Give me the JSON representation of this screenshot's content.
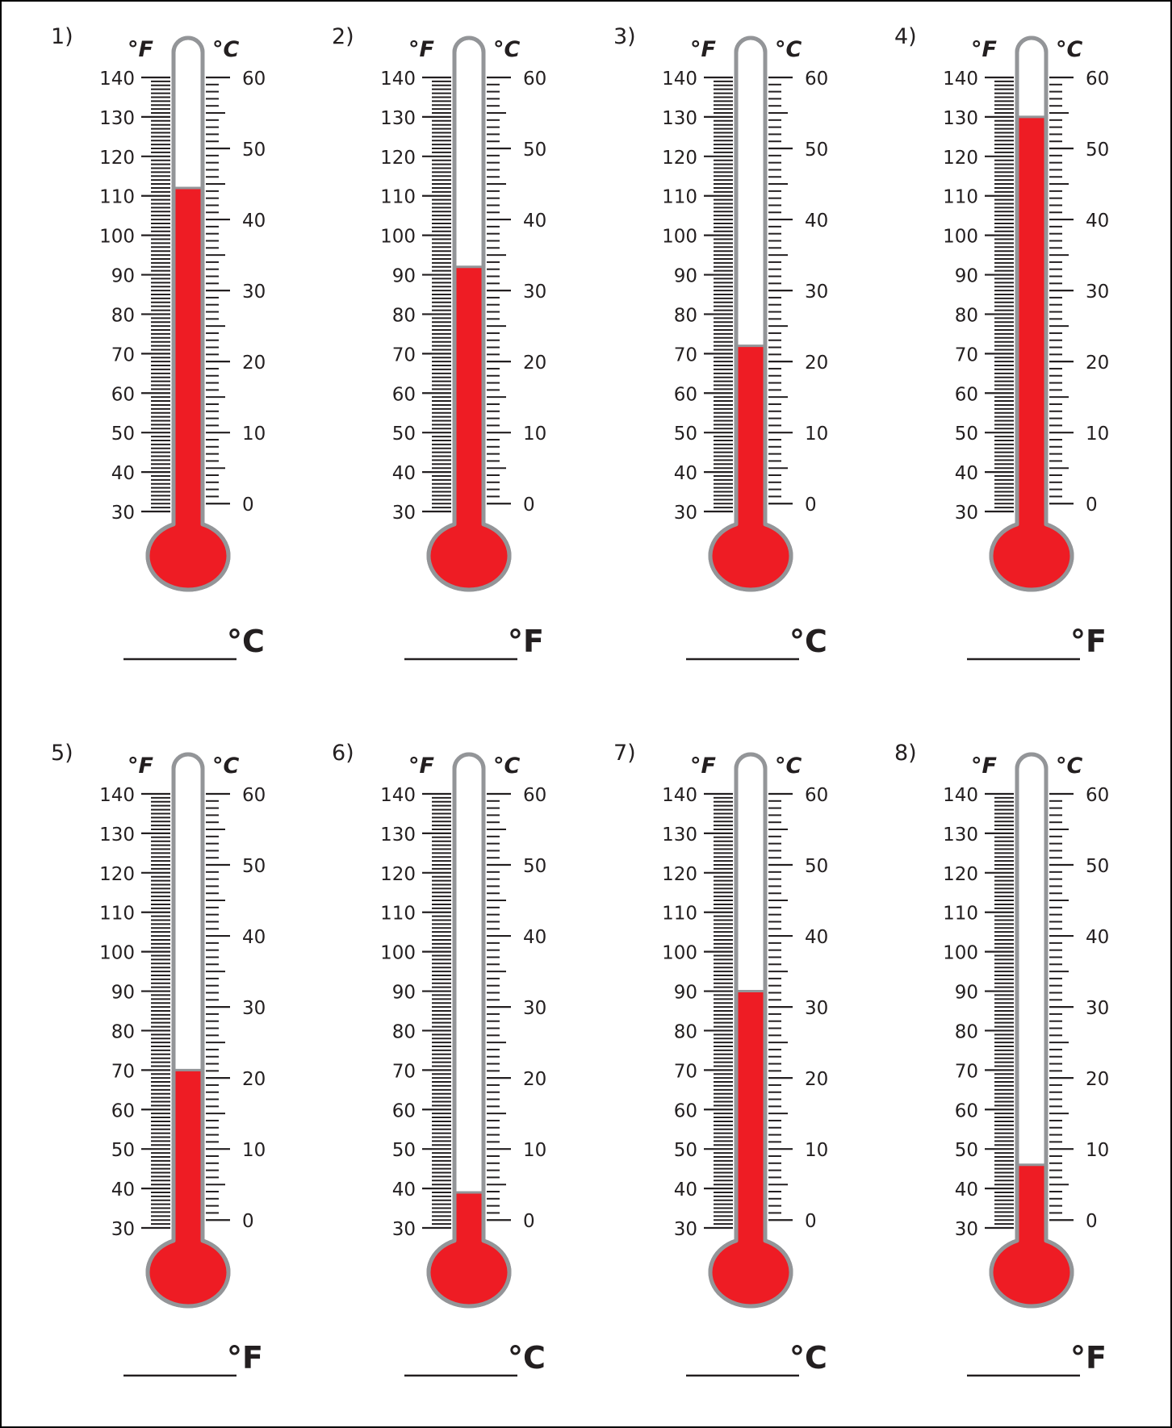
{
  "worksheet": {
    "scale": {
      "fahrenheit_symbol": "°F",
      "celsius_symbol": "°C",
      "fahrenheit_ticks": [
        "140",
        "130",
        "120",
        "110",
        "100",
        "90",
        "80",
        "70",
        "60",
        "50",
        "40",
        "30"
      ],
      "celsius_ticks": [
        "60",
        "50",
        "40",
        "30",
        "20",
        "10",
        "0"
      ],
      "fahrenheit_range": [
        30,
        140
      ],
      "celsius_range": [
        0,
        60
      ]
    },
    "colors": {
      "mercury": "#ee1c24",
      "tube_outline": "#939598",
      "ink": "#231f20"
    },
    "thermometers": [
      {
        "number": "1)",
        "reading_f": 112,
        "answer_unit": "°C"
      },
      {
        "number": "2)",
        "reading_f": 92,
        "answer_unit": "°F"
      },
      {
        "number": "3)",
        "reading_f": 72,
        "answer_unit": "°C"
      },
      {
        "number": "4)",
        "reading_f": 130,
        "answer_unit": "°F"
      },
      {
        "number": "5)",
        "reading_f": 70,
        "answer_unit": "°F"
      },
      {
        "number": "6)",
        "reading_f": 39,
        "answer_unit": "°C"
      },
      {
        "number": "7)",
        "reading_f": 90,
        "answer_unit": "°C"
      },
      {
        "number": "8)",
        "reading_f": 46,
        "answer_unit": "°F"
      }
    ]
  }
}
